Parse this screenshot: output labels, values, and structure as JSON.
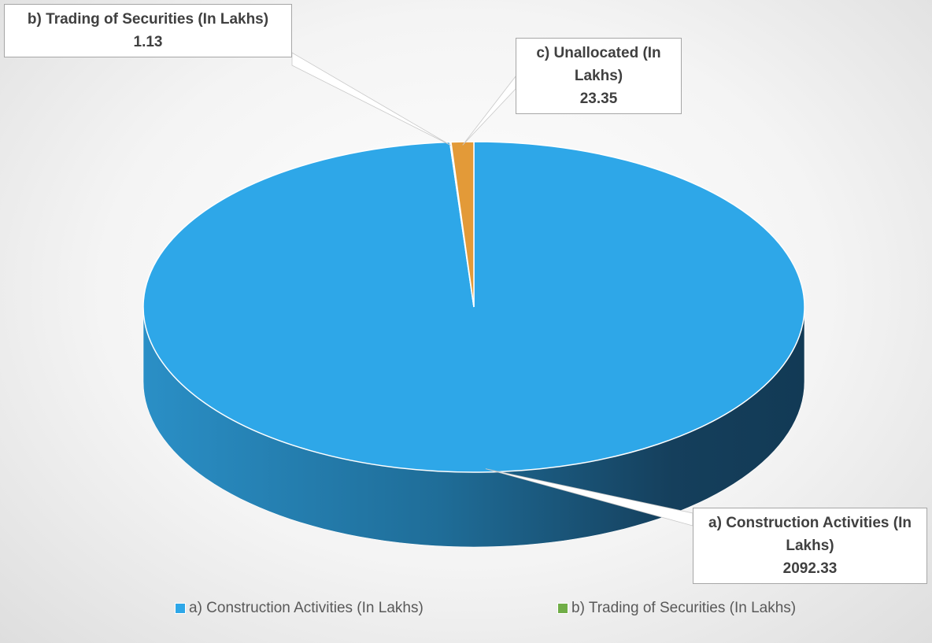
{
  "chart_data": {
    "type": "pie",
    "categories": [
      "a) Construction Activities (In Lakhs)",
      "b) Trading of Securities (In Lakhs)",
      "c) Unallocated (In Lakhs)"
    ],
    "values": [
      2092.33,
      1.13,
      23.35
    ],
    "colors": [
      "#2ea7e8",
      "#70ad47",
      "#e39a38"
    ],
    "legend": "bottom"
  }
}
